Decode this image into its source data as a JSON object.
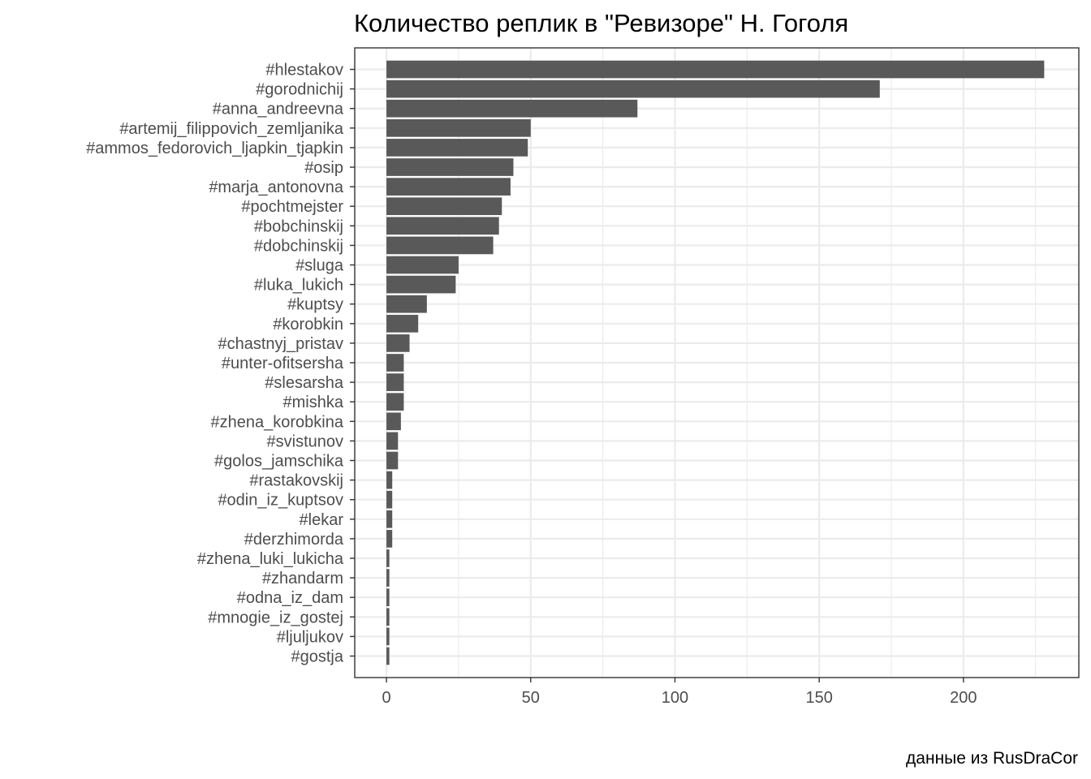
{
  "chart_data": {
    "type": "bar",
    "orientation": "horizontal",
    "title": "Количество реплик в \"Ревизоре\" Н. Гоголя",
    "caption": "данные из RusDraCor",
    "xlabel": "",
    "ylabel": "",
    "xlim": [
      -11,
      240
    ],
    "x_ticks": [
      0,
      50,
      100,
      150,
      200
    ],
    "grid": true,
    "categories": [
      "#hlestakov",
      "#gorodnichij",
      "#anna_andreevna",
      "#artemij_filippovich_zemljanika",
      "#ammos_fedorovich_ljapkin_tjapkin",
      "#osip",
      "#marja_antonovna",
      "#pochtmejster",
      "#bobchinskij",
      "#dobchinskij",
      "#sluga",
      "#luka_lukich",
      "#kuptsy",
      "#korobkin",
      "#chastnyj_pristav",
      "#unter-ofitsersha",
      "#slesarsha",
      "#mishka",
      "#zhena_korobkina",
      "#svistunov",
      "#golos_jamschika",
      "#rastakovskij",
      "#odin_iz_kuptsov",
      "#lekar",
      "#derzhimorda",
      "#zhena_luki_lukicha",
      "#zhandarm",
      "#odna_iz_dam",
      "#mnogie_iz_gostej",
      "#ljuljukov",
      "#gostja"
    ],
    "values": [
      228,
      171,
      87,
      50,
      49,
      44,
      43,
      40,
      39,
      37,
      25,
      24,
      14,
      11,
      8,
      6,
      6,
      6,
      5,
      4,
      4,
      2,
      2,
      2,
      2,
      1,
      1,
      1,
      1,
      1,
      1
    ],
    "bar_color": "#595959",
    "grid_color": "#ebebeb"
  }
}
